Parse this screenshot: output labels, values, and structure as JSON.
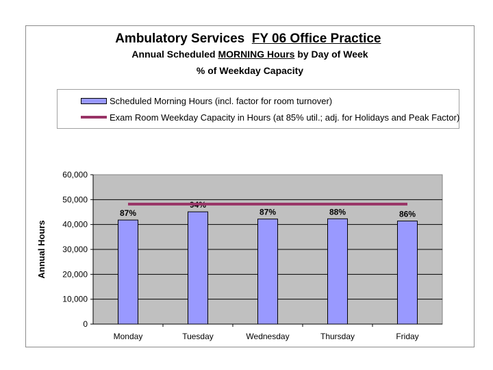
{
  "chart_data": {
    "type": "bar",
    "title": "Ambulatory Services  FY 06 Office Practice",
    "title_prefix": "Ambulatory Services",
    "title_underlined": "FY 06 Office Practice",
    "subtitle_prefix": "Annual Scheduled ",
    "subtitle_underlined": "MORNING Hours",
    "subtitle_suffix": " by Day of Week",
    "subtitle2": "% of Weekday Capacity",
    "xlabel": "",
    "ylabel": "Annual Hours",
    "ylim": [
      0,
      60000
    ],
    "yticks": [
      "0",
      "10,000",
      "20,000",
      "30,000",
      "40,000",
      "50,000",
      "60,000"
    ],
    "categories": [
      "Monday",
      "Tuesday",
      "Wednesday",
      "Thursday",
      "Friday"
    ],
    "series": [
      {
        "name": "Scheduled Morning Hours (incl. factor for room turnover)",
        "kind": "bar",
        "color": "#9999ff",
        "values": [
          41800,
          45100,
          42200,
          42300,
          41400
        ],
        "labels": [
          "87%",
          "94%",
          "87%",
          "88%",
          "86%"
        ]
      },
      {
        "name": "Exam Room Weekday Capacity in Hours (at 85% util.; adj. for Holidays and Peak Factor)",
        "kind": "line",
        "color": "#993366",
        "values": [
          48200,
          48200,
          48200,
          48200,
          48200
        ]
      }
    ],
    "plot_background": "#c0c0c0",
    "grid": true,
    "legend_position": "top"
  }
}
